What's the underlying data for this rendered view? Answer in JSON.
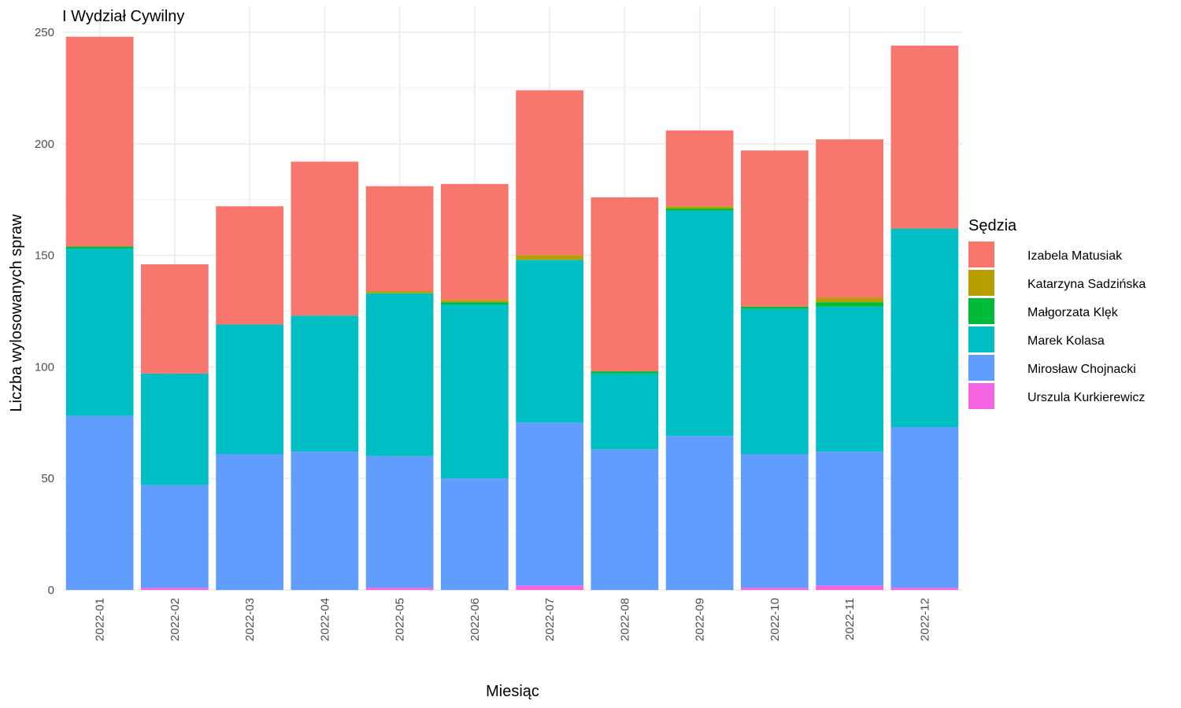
{
  "chart_data": {
    "type": "bar",
    "stacked": true,
    "title": "I Wydział Cywilny",
    "xlabel": "Miesiąc",
    "ylabel": "Liczba wylosowanych spraw",
    "ylim": [
      0,
      250
    ],
    "yticks": [
      0,
      50,
      100,
      150,
      200,
      250
    ],
    "grid": true,
    "legend_title": "Sędzia",
    "legend_position": "right",
    "categories": [
      "2022-01",
      "2022-02",
      "2022-03",
      "2022-04",
      "2022-05",
      "2022-06",
      "2022-07",
      "2022-08",
      "2022-09",
      "2022-10",
      "2022-11",
      "2022-12"
    ],
    "series": [
      {
        "name": "Urszula Kurkierewicz",
        "color": "#F564E3",
        "values": [
          0,
          1,
          0,
          0,
          1,
          0,
          2,
          0,
          0,
          1,
          2,
          1
        ]
      },
      {
        "name": "Mirosław Chojnacki",
        "color": "#619CFF",
        "values": [
          78,
          46,
          61,
          62,
          59,
          50,
          73,
          63,
          69,
          60,
          60,
          72
        ]
      },
      {
        "name": "Marek Kolasa",
        "color": "#00BFC4",
        "values": [
          75,
          50,
          58,
          61,
          73,
          78,
          73,
          34,
          101,
          65,
          65,
          89
        ]
      },
      {
        "name": "Małgorzata Klęk",
        "color": "#00BA38",
        "values": [
          1,
          0,
          0,
          0,
          0,
          1,
          0,
          1,
          1,
          1,
          2,
          0
        ]
      },
      {
        "name": "Katarzyna Sadzińska",
        "color": "#B79F00",
        "values": [
          0,
          0,
          0,
          0,
          1,
          1,
          2,
          0,
          1,
          0,
          2,
          0
        ]
      },
      {
        "name": "Izabela Matusiak",
        "color": "#F8766D",
        "values": [
          94,
          49,
          53,
          69,
          47,
          52,
          74,
          78,
          34,
          70,
          71,
          82
        ]
      }
    ],
    "legend_order": [
      "Izabela Matusiak",
      "Katarzyna Sadzińska",
      "Małgorzata Klęk",
      "Marek Kolasa",
      "Mirosław Chojnacki",
      "Urszula Kurkierewicz"
    ]
  }
}
